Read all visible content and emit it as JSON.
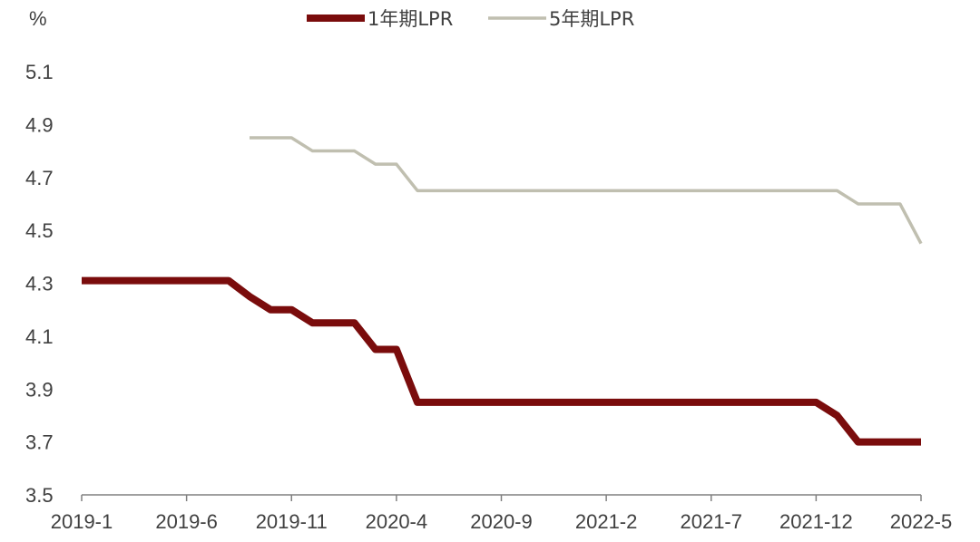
{
  "chart_data": {
    "type": "line",
    "unit": "%",
    "x": [
      "2019-1",
      "2019-2",
      "2019-3",
      "2019-4",
      "2019-5",
      "2019-6",
      "2019-7",
      "2019-8",
      "2019-9",
      "2019-10",
      "2019-11",
      "2019-12",
      "2020-1",
      "2020-2",
      "2020-3",
      "2020-4",
      "2020-5",
      "2020-6",
      "2020-7",
      "2020-8",
      "2020-9",
      "2020-10",
      "2020-11",
      "2020-12",
      "2021-1",
      "2021-2",
      "2021-3",
      "2021-4",
      "2021-5",
      "2021-6",
      "2021-7",
      "2021-8",
      "2021-9",
      "2021-10",
      "2021-11",
      "2021-12",
      "2022-1",
      "2022-2",
      "2022-3",
      "2022-4",
      "2022-5"
    ],
    "x_tick_labels": [
      "2019-1",
      "2019-6",
      "2019-11",
      "2020-4",
      "2020-9",
      "2021-2",
      "2021-7",
      "2021-12",
      "2022-5"
    ],
    "ylim": [
      3.5,
      5.1
    ],
    "y_ticks": [
      "3.5",
      "3.7",
      "3.9",
      "4.1",
      "4.3",
      "4.5",
      "4.7",
      "4.9",
      "5.1"
    ],
    "grid": false,
    "legend_position": "top",
    "series": [
      {
        "name": "1年期LPR",
        "color": "#7a0c0c",
        "values": [
          4.31,
          4.31,
          4.31,
          4.31,
          4.31,
          4.31,
          4.31,
          4.31,
          4.25,
          4.2,
          4.2,
          4.15,
          4.15,
          4.15,
          4.05,
          4.05,
          3.85,
          3.85,
          3.85,
          3.85,
          3.85,
          3.85,
          3.85,
          3.85,
          3.85,
          3.85,
          3.85,
          3.85,
          3.85,
          3.85,
          3.85,
          3.85,
          3.85,
          3.85,
          3.85,
          3.85,
          3.8,
          3.7,
          3.7,
          3.7,
          3.7
        ]
      },
      {
        "name": "5年期LPR",
        "color": "#c0bfb0",
        "values": [
          null,
          null,
          null,
          null,
          null,
          null,
          null,
          null,
          4.85,
          4.85,
          4.85,
          4.8,
          4.8,
          4.8,
          4.75,
          4.75,
          4.65,
          4.65,
          4.65,
          4.65,
          4.65,
          4.65,
          4.65,
          4.65,
          4.65,
          4.65,
          4.65,
          4.65,
          4.65,
          4.65,
          4.65,
          4.65,
          4.65,
          4.65,
          4.65,
          4.65,
          4.65,
          4.6,
          4.6,
          4.6,
          4.45
        ]
      }
    ]
  }
}
